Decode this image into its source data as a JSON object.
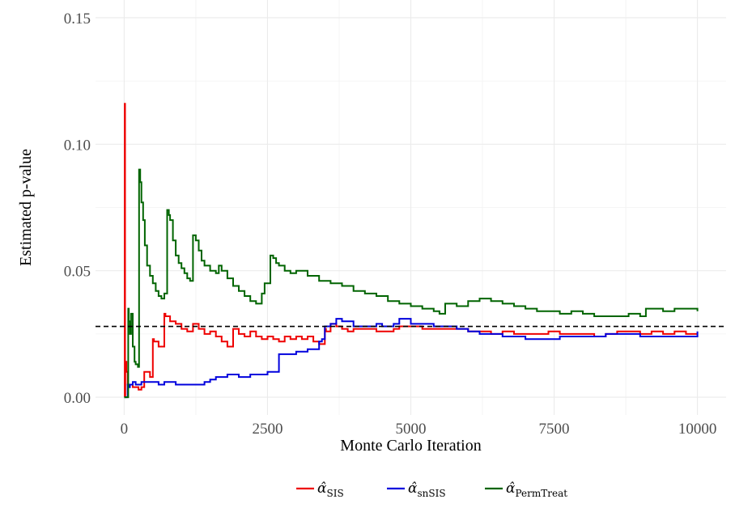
{
  "chart_data": {
    "type": "line",
    "xlabel": "Monte Carlo Iteration",
    "ylabel": "Estimated p-value",
    "xlim": [
      -500,
      10500
    ],
    "ylim": [
      -0.007,
      0.157
    ],
    "x_ticks": [
      0,
      2500,
      5000,
      7500,
      10000
    ],
    "x_tick_labels": [
      "0",
      "2500",
      "5000",
      "7500",
      "10000"
    ],
    "y_ticks": [
      0.0,
      0.05,
      0.1,
      0.15
    ],
    "y_tick_labels": [
      "0.00",
      "0.05",
      "0.10",
      "0.15"
    ],
    "grid": true,
    "legend_position": "bottom",
    "reference_line": {
      "y": 0.028,
      "style": "dashed",
      "color": "#000000"
    },
    "series": [
      {
        "name": "α̂SIS",
        "symbol": "α̂",
        "subscript": "SIS",
        "color": "#ee0000",
        "x": [
          1,
          10,
          15,
          20,
          40,
          60,
          80,
          100,
          150,
          200,
          250,
          300,
          350,
          360,
          450,
          500,
          520,
          600,
          700,
          720,
          800,
          900,
          1000,
          1100,
          1200,
          1300,
          1400,
          1500,
          1600,
          1700,
          1800,
          1900,
          2000,
          2100,
          2200,
          2300,
          2400,
          2500,
          2600,
          2700,
          2800,
          2900,
          3000,
          3100,
          3200,
          3300,
          3400,
          3500,
          3520,
          3600,
          3700,
          3800,
          3900,
          4000,
          4200,
          4400,
          4600,
          4700,
          4800,
          5000,
          5200,
          5400,
          5600,
          5800,
          6000,
          6200,
          6400,
          6600,
          6800,
          7000,
          7200,
          7400,
          7600,
          7800,
          8000,
          8200,
          8400,
          8600,
          8800,
          9000,
          9200,
          9400,
          9600,
          9800,
          10000
        ],
        "y": [
          0.0,
          0.116,
          0.0,
          0.014,
          0.01,
          0.005,
          0.004,
          0.005,
          0.004,
          0.004,
          0.003,
          0.004,
          0.01,
          0.01,
          0.008,
          0.023,
          0.022,
          0.02,
          0.033,
          0.032,
          0.03,
          0.029,
          0.027,
          0.026,
          0.029,
          0.027,
          0.025,
          0.026,
          0.024,
          0.022,
          0.02,
          0.027,
          0.025,
          0.024,
          0.026,
          0.024,
          0.023,
          0.024,
          0.023,
          0.022,
          0.024,
          0.023,
          0.024,
          0.023,
          0.024,
          0.022,
          0.021,
          0.027,
          0.026,
          0.029,
          0.028,
          0.027,
          0.026,
          0.027,
          0.027,
          0.026,
          0.026,
          0.027,
          0.028,
          0.028,
          0.027,
          0.027,
          0.027,
          0.027,
          0.026,
          0.026,
          0.025,
          0.026,
          0.025,
          0.025,
          0.025,
          0.026,
          0.025,
          0.025,
          0.025,
          0.024,
          0.025,
          0.026,
          0.026,
          0.025,
          0.026,
          0.025,
          0.026,
          0.025,
          0.025
        ]
      },
      {
        "name": "α̂snSIS",
        "symbol": "α̂",
        "subscript": "snSIS",
        "color": "#0000dd",
        "x": [
          1,
          10,
          15,
          20,
          40,
          60,
          80,
          100,
          150,
          200,
          300,
          400,
          500,
          600,
          700,
          800,
          900,
          1000,
          1200,
          1400,
          1500,
          1600,
          1800,
          2000,
          2200,
          2400,
          2500,
          2600,
          2650,
          2700,
          2800,
          3000,
          3200,
          3400,
          3450,
          3500,
          3600,
          3700,
          3800,
          4000,
          4200,
          4400,
          4500,
          4600,
          4700,
          4800,
          5000,
          5200,
          5400,
          5600,
          5800,
          6000,
          6200,
          6400,
          6600,
          6800,
          7000,
          7200,
          7400,
          7600,
          7800,
          8000,
          8200,
          8400,
          8600,
          8800,
          9000,
          9200,
          9400,
          9600,
          9800,
          10000
        ],
        "y": [
          0.0,
          0.0,
          0.0,
          0.0,
          0.0,
          0.005,
          0.004,
          0.005,
          0.006,
          0.005,
          0.006,
          0.006,
          0.006,
          0.005,
          0.006,
          0.006,
          0.005,
          0.005,
          0.005,
          0.006,
          0.007,
          0.008,
          0.009,
          0.008,
          0.009,
          0.009,
          0.01,
          0.01,
          0.01,
          0.017,
          0.017,
          0.018,
          0.019,
          0.022,
          0.023,
          0.028,
          0.029,
          0.031,
          0.03,
          0.028,
          0.028,
          0.029,
          0.028,
          0.028,
          0.029,
          0.031,
          0.029,
          0.029,
          0.028,
          0.028,
          0.027,
          0.026,
          0.025,
          0.025,
          0.024,
          0.024,
          0.023,
          0.023,
          0.023,
          0.024,
          0.024,
          0.024,
          0.024,
          0.025,
          0.025,
          0.025,
          0.024,
          0.024,
          0.024,
          0.024,
          0.024,
          0.026
        ]
      },
      {
        "name": "α̂PermTreat",
        "symbol": "α̂",
        "subscript": "PermTreat",
        "color": "#006400",
        "x": [
          1,
          60,
          70,
          80,
          100,
          120,
          150,
          180,
          200,
          240,
          260,
          280,
          300,
          330,
          360,
          400,
          450,
          500,
          550,
          600,
          650,
          700,
          750,
          780,
          800,
          850,
          900,
          950,
          1000,
          1050,
          1100,
          1150,
          1200,
          1250,
          1300,
          1350,
          1400,
          1500,
          1600,
          1650,
          1700,
          1800,
          1900,
          2000,
          2100,
          2200,
          2300,
          2400,
          2450,
          2550,
          2600,
          2650,
          2700,
          2800,
          2900,
          3000,
          3200,
          3400,
          3600,
          3800,
          4000,
          4200,
          4400,
          4600,
          4800,
          5000,
          5200,
          5400,
          5500,
          5600,
          5800,
          6000,
          6200,
          6400,
          6600,
          6800,
          7000,
          7200,
          7400,
          7600,
          7800,
          8000,
          8200,
          8400,
          8600,
          8800,
          9000,
          9100,
          9200,
          9400,
          9600,
          9800,
          10000
        ],
        "y": [
          0.0,
          0.0,
          0.035,
          0.03,
          0.025,
          0.033,
          0.02,
          0.014,
          0.013,
          0.012,
          0.09,
          0.085,
          0.077,
          0.07,
          0.06,
          0.052,
          0.048,
          0.045,
          0.042,
          0.04,
          0.039,
          0.041,
          0.074,
          0.072,
          0.07,
          0.062,
          0.056,
          0.053,
          0.051,
          0.049,
          0.047,
          0.046,
          0.064,
          0.062,
          0.058,
          0.054,
          0.052,
          0.05,
          0.049,
          0.052,
          0.05,
          0.047,
          0.044,
          0.042,
          0.04,
          0.038,
          0.037,
          0.041,
          0.045,
          0.056,
          0.055,
          0.053,
          0.052,
          0.05,
          0.049,
          0.05,
          0.048,
          0.046,
          0.045,
          0.044,
          0.042,
          0.041,
          0.04,
          0.038,
          0.037,
          0.036,
          0.035,
          0.034,
          0.033,
          0.037,
          0.036,
          0.038,
          0.039,
          0.038,
          0.037,
          0.036,
          0.035,
          0.034,
          0.034,
          0.033,
          0.034,
          0.033,
          0.032,
          0.032,
          0.032,
          0.033,
          0.032,
          0.035,
          0.035,
          0.034,
          0.035,
          0.035,
          0.034
        ]
      }
    ]
  }
}
